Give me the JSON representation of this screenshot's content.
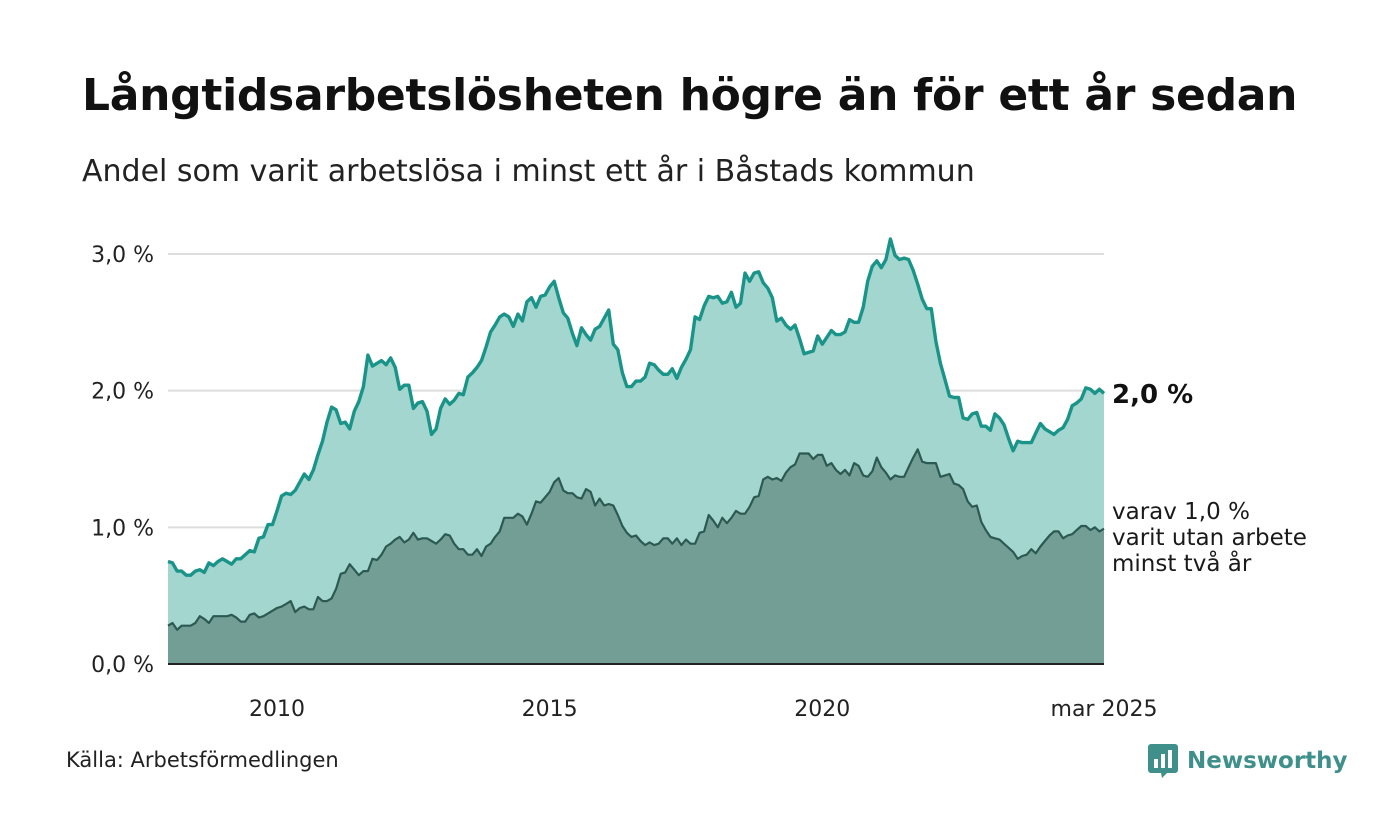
{
  "title": "Långtidsarbetslösheten högre än för ett år sedan",
  "subtitle": "Andel som varit arbetslösa i minst ett år i Båstads kommun",
  "source": "Källa: Arbetsförmedlingen",
  "brand": {
    "name": "Newsworthy",
    "icon": "newsworthy-logo-icon",
    "color": "#3f8f8a"
  },
  "end_labels": {
    "main": "2,0 %",
    "sub_lines": [
      "varav 1,0 %",
      "varit utan arbete",
      "minst två år"
    ]
  },
  "colors": {
    "series1_line": "#1a9488",
    "series1_fill": "#a3d6cf",
    "series2_line": "#2c5a52",
    "series2_fill": "#729e96",
    "grid": "#dddddd",
    "axis": "#222222"
  },
  "chart_data": {
    "type": "area",
    "x_start": "2008-01",
    "x_end": "2025-03",
    "x_step": "month",
    "xlim": [
      2008.0,
      2025.167
    ],
    "ylim": [
      0,
      3.0
    ],
    "y_ticks": [
      0,
      1.0,
      2.0,
      3.0
    ],
    "y_tick_labels": [
      "0,0 %",
      "1,0 %",
      "2,0 %",
      "3,0 %"
    ],
    "x_ticks": [
      2010,
      2015,
      2020,
      2025.167
    ],
    "x_tick_labels": [
      "2010",
      "2015",
      "2020",
      "mar 2025"
    ],
    "grid": "horizontal",
    "series": [
      {
        "values": [
          0.75,
          0.74,
          0.68,
          0.68,
          0.65,
          0.65,
          0.68,
          0.69,
          0.67,
          0.74,
          0.72,
          0.75,
          0.77,
          0.75,
          0.73,
          0.77,
          0.77,
          0.8,
          0.83,
          0.82,
          0.92,
          0.93,
          1.02,
          1.02,
          1.12,
          1.23,
          1.25,
          1.24,
          1.27,
          1.33,
          1.39,
          1.35,
          1.42,
          1.53,
          1.63,
          1.77,
          1.88,
          1.86,
          1.76,
          1.77,
          1.72,
          1.85,
          1.92,
          2.03,
          2.26,
          2.18,
          2.2,
          2.22,
          2.19,
          2.24,
          2.17,
          2.01,
          2.04,
          2.04,
          1.87,
          1.91,
          1.92,
          1.85,
          1.68,
          1.72,
          1.87,
          1.94,
          1.9,
          1.93,
          1.98,
          1.97,
          2.1,
          2.13,
          2.17,
          2.22,
          2.32,
          2.43,
          2.48,
          2.54,
          2.56,
          2.54,
          2.47,
          2.56,
          2.51,
          2.65,
          2.68,
          2.61,
          2.69,
          2.7,
          2.76,
          2.8,
          2.68,
          2.57,
          2.53,
          2.42,
          2.33,
          2.46,
          2.41,
          2.37,
          2.45,
          2.47,
          2.53,
          2.59,
          2.34,
          2.3,
          2.13,
          2.03,
          2.03,
          2.07,
          2.07,
          2.1,
          2.2,
          2.19,
          2.15,
          2.12,
          2.12,
          2.16,
          2.09,
          2.17,
          2.23,
          2.3,
          2.54,
          2.52,
          2.62,
          2.69,
          2.68,
          2.69,
          2.64,
          2.65,
          2.72,
          2.61,
          2.64,
          2.86,
          2.8,
          2.86,
          2.87,
          2.79,
          2.75,
          2.68,
          2.51,
          2.53,
          2.48,
          2.45,
          2.48,
          2.38,
          2.27,
          2.28,
          2.29,
          2.4,
          2.34,
          2.39,
          2.44,
          2.41,
          2.41,
          2.43,
          2.52,
          2.5,
          2.5,
          2.61,
          2.8,
          2.91,
          2.95,
          2.9,
          2.96,
          3.11,
          2.99,
          2.96,
          2.97,
          2.96,
          2.88,
          2.78,
          2.67,
          2.6,
          2.6,
          2.36,
          2.2,
          2.08,
          1.96,
          1.95,
          1.95,
          1.8,
          1.79,
          1.83,
          1.84,
          1.74,
          1.74,
          1.71,
          1.83,
          1.8,
          1.75,
          1.65,
          1.56,
          1.63,
          1.62,
          1.62,
          1.62,
          1.69,
          1.76,
          1.72,
          1.7,
          1.68,
          1.71,
          1.73,
          1.79,
          1.89,
          1.91,
          1.94,
          2.02,
          2.01,
          1.98,
          2.01,
          1.98
        ]
      },
      {
        "values": [
          0.28,
          0.3,
          0.25,
          0.28,
          0.28,
          0.28,
          0.3,
          0.35,
          0.33,
          0.3,
          0.35,
          0.35,
          0.35,
          0.35,
          0.36,
          0.34,
          0.31,
          0.31,
          0.36,
          0.37,
          0.34,
          0.35,
          0.37,
          0.39,
          0.41,
          0.42,
          0.44,
          0.46,
          0.38,
          0.41,
          0.42,
          0.4,
          0.4,
          0.49,
          0.46,
          0.46,
          0.48,
          0.55,
          0.66,
          0.67,
          0.73,
          0.69,
          0.65,
          0.68,
          0.68,
          0.77,
          0.76,
          0.8,
          0.86,
          0.88,
          0.91,
          0.93,
          0.89,
          0.91,
          0.96,
          0.91,
          0.92,
          0.92,
          0.9,
          0.88,
          0.91,
          0.95,
          0.94,
          0.88,
          0.84,
          0.84,
          0.8,
          0.8,
          0.84,
          0.79,
          0.86,
          0.88,
          0.93,
          0.97,
          1.07,
          1.07,
          1.07,
          1.1,
          1.08,
          1.02,
          1.1,
          1.19,
          1.18,
          1.22,
          1.26,
          1.33,
          1.36,
          1.27,
          1.25,
          1.25,
          1.22,
          1.21,
          1.28,
          1.26,
          1.16,
          1.21,
          1.16,
          1.17,
          1.16,
          1.09,
          1.01,
          0.96,
          0.93,
          0.94,
          0.9,
          0.87,
          0.89,
          0.87,
          0.88,
          0.92,
          0.92,
          0.88,
          0.92,
          0.87,
          0.91,
          0.88,
          0.88,
          0.96,
          0.97,
          1.09,
          1.05,
          1.0,
          1.07,
          1.03,
          1.07,
          1.12,
          1.1,
          1.1,
          1.15,
          1.22,
          1.23,
          1.35,
          1.37,
          1.35,
          1.36,
          1.34,
          1.4,
          1.44,
          1.46,
          1.54,
          1.54,
          1.54,
          1.5,
          1.53,
          1.53,
          1.45,
          1.47,
          1.42,
          1.39,
          1.42,
          1.38,
          1.47,
          1.45,
          1.38,
          1.37,
          1.41,
          1.51,
          1.44,
          1.4,
          1.35,
          1.38,
          1.37,
          1.37,
          1.44,
          1.51,
          1.57,
          1.48,
          1.47,
          1.47,
          1.47,
          1.37,
          1.38,
          1.39,
          1.32,
          1.31,
          1.28,
          1.19,
          1.15,
          1.16,
          1.04,
          0.98,
          0.93,
          0.92,
          0.91,
          0.88,
          0.85,
          0.82,
          0.77,
          0.79,
          0.8,
          0.84,
          0.81,
          0.86,
          0.9,
          0.94,
          0.97,
          0.97,
          0.92,
          0.94,
          0.95,
          0.98,
          1.01,
          1.01,
          0.98,
          1.0,
          0.97,
          0.99
        ]
      }
    ]
  }
}
